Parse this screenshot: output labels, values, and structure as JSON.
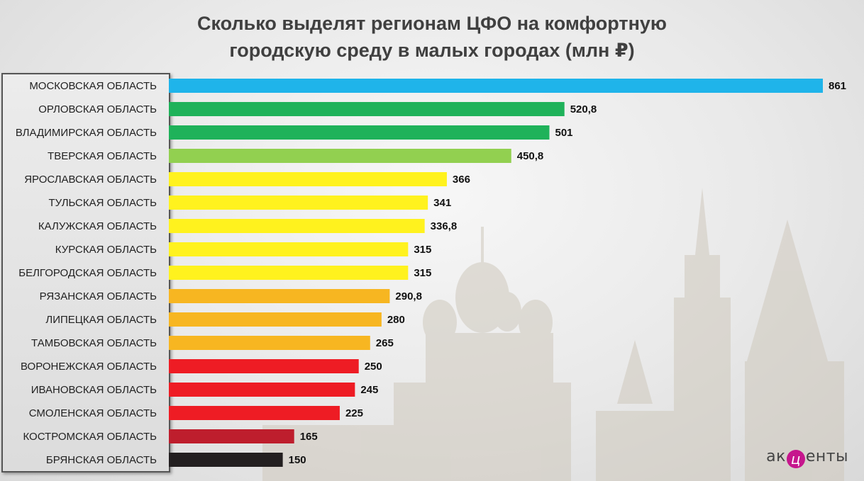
{
  "title_line1": "Сколько выделят регионам ЦФО на комфортную",
  "title_line2": "городскую среду в малых городах (млн ₽)",
  "logo": {
    "left": "ак",
    "mark": "ц",
    "right": "енты"
  },
  "chart_data": {
    "type": "bar",
    "orientation": "horizontal",
    "title": "Сколько выделят регионам ЦФО на комфортную городскую среду в малых городах (млн ₽)",
    "categories": [
      "Московская область",
      "Орловская область",
      "Владимирская область",
      "Тверская область",
      "Ярославская область",
      "Тульская область",
      "Калужская область",
      "Курская область",
      "Белгородская область",
      "Рязанская область",
      "Липецкая область",
      "Тамбовская область",
      "Воронежская область",
      "Ивановская область",
      "Смоленская область",
      "Костромская область",
      "Брянская область"
    ],
    "values": [
      861,
      520.8,
      501,
      450.8,
      366,
      341,
      336.8,
      315,
      315,
      290.8,
      280,
      265,
      250,
      245,
      225,
      165,
      150
    ],
    "value_labels": [
      "861",
      "520,8",
      "501",
      "450,8",
      "366",
      "341",
      "336,8",
      "315",
      "315",
      "290,8",
      "280",
      "265",
      "250",
      "245",
      "225",
      "165",
      "150"
    ],
    "colors": [
      "#1fb4ea",
      "#1fb25a",
      "#1fb25a",
      "#92d050",
      "#fff21e",
      "#fff21e",
      "#fff21e",
      "#fff21e",
      "#fff21e",
      "#f7b621",
      "#f7b621",
      "#f7b621",
      "#ee1c24",
      "#ee1c24",
      "#ee1c24",
      "#be1e2d",
      "#231f20"
    ],
    "xlim": [
      0,
      861
    ],
    "grid": false,
    "legend": "none"
  }
}
